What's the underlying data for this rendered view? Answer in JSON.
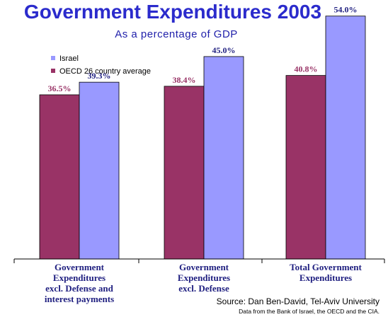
{
  "colors": {
    "title": "#2b2bcc",
    "subtitle": "#1f1faa",
    "oecd_bar": "#993366",
    "israel_bar": "#9999ff",
    "oecd_label": "#993366",
    "israel_label": "#1f1f80",
    "category_label": "#1f1f80"
  },
  "chart_data": {
    "type": "bar",
    "title": "Government Expenditures 2003",
    "subtitle": "As a percentage of GDP",
    "categories": [
      [
        "Government",
        "Expenditures",
        "excl. Defense and",
        "interest payments"
      ],
      [
        "Government",
        "Expenditures",
        "excl. Defense"
      ],
      [
        "Total Government",
        "Expenditures"
      ]
    ],
    "series": [
      {
        "name": "OECD 26 country average",
        "values": [
          36.5,
          38.4,
          40.8
        ],
        "labels": [
          "36.5%",
          "38.4%",
          "40.8%"
        ]
      },
      {
        "name": "Israel",
        "values": [
          39.3,
          45.0,
          54.0
        ],
        "labels": [
          "39.3%",
          "45.0%",
          "54.0%"
        ]
      }
    ],
    "ylim": [
      0,
      56
    ],
    "grid": false,
    "legend_position": "top-left",
    "xlabel": "",
    "ylabel": ""
  },
  "source": "Source: Dan Ben-David, Tel-Aviv University",
  "note": "Data from the Bank of Israel, the OECD and the CIA."
}
